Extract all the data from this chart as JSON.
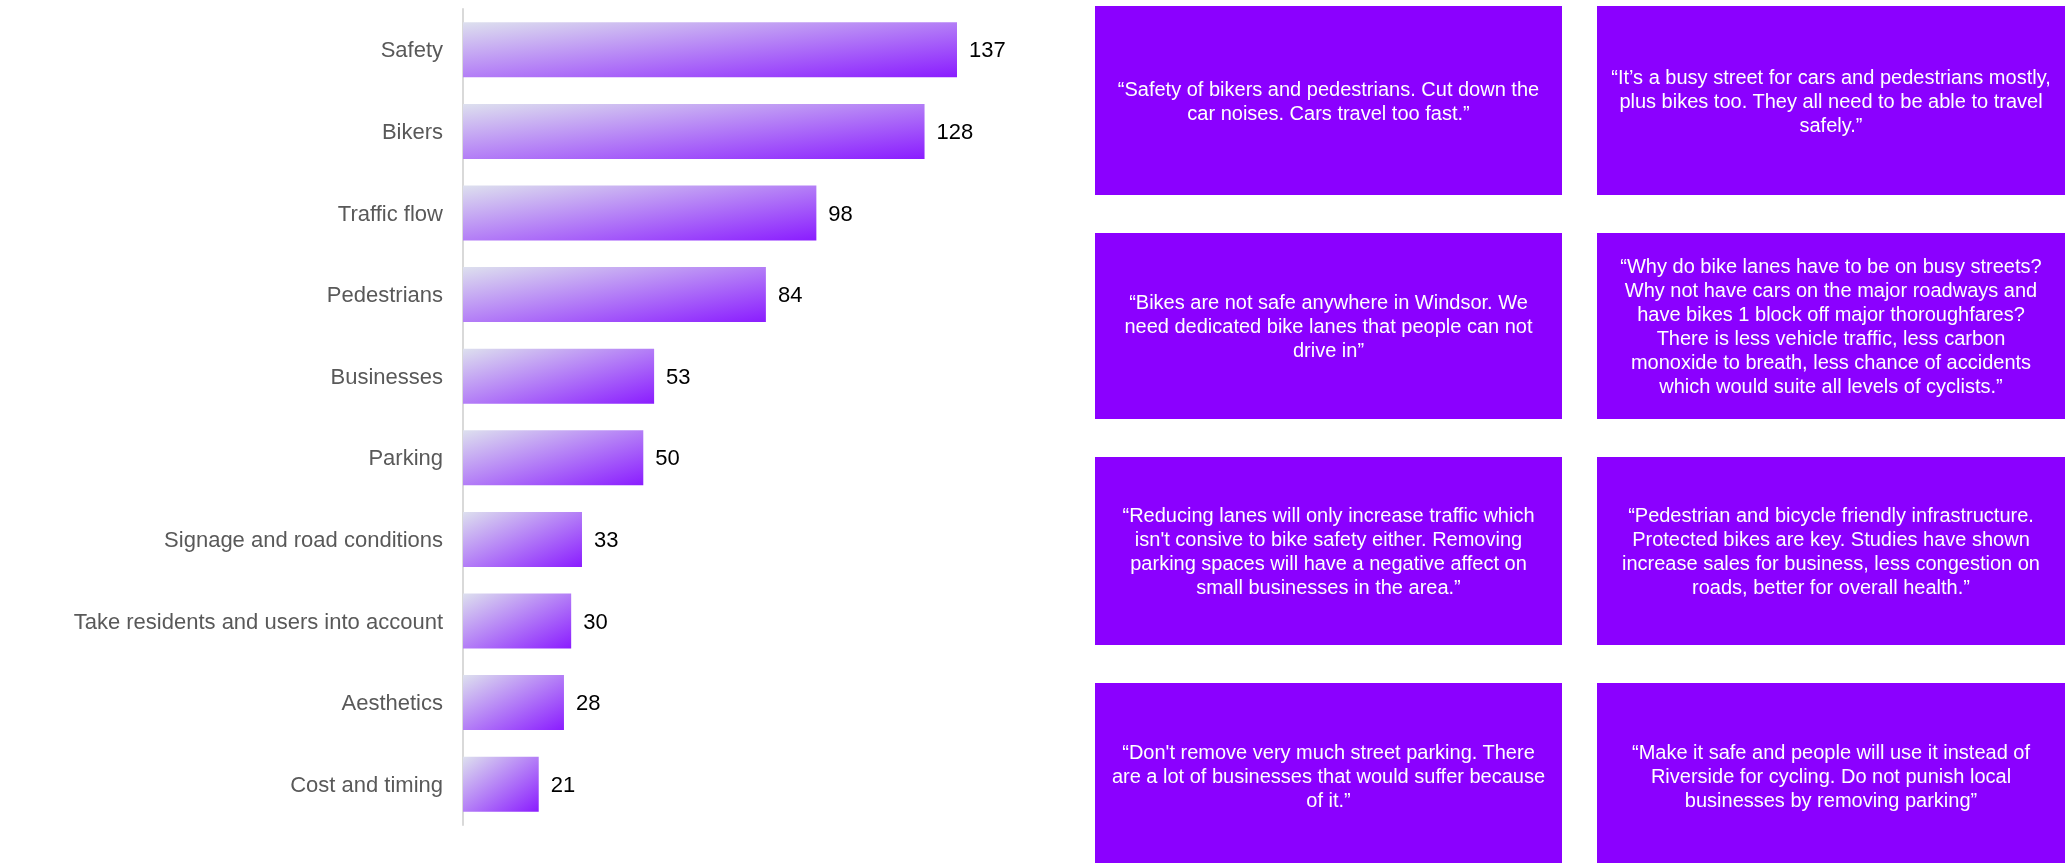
{
  "chart_data": [
    {
      "type": "bar",
      "orientation": "horizontal",
      "categories": [
        "Safety",
        "Bikers",
        "Traffic flow",
        "Pedestrians",
        "Businesses",
        "Parking",
        "Signage and road conditions",
        "Take residents and users into account",
        "Aesthetics",
        "Cost and timing"
      ],
      "values": [
        137,
        128,
        98,
        84,
        53,
        50,
        33,
        30,
        28,
        21
      ],
      "color": "#8a1cff",
      "data_labels": true
    },
    {
      "type": "other",
      "annotations": [
        "“Safety of bikers and pedestrians. Cut down the car noises. Cars travel too fast.”",
        "“It’s a busy street for cars and pedestrians mostly, plus bikes too. They all need to be able to travel safely.”",
        "“Bikes are not safe anywhere in Windsor. We need dedicated bike lanes that people can not drive in”",
        "“Why do bike lanes have to be on busy streets? Why not have cars on the major roadways and have bikes 1 block off major thoroughfares? There is less vehicle traffic, less carbon monoxide to breath, less chance of accidents which would suite all levels of cyclists.”",
        "“Reducing lanes will only increase traffic which isn't consive to bike safety either. Removing parking spaces will have a negative affect on small businesses in the area.”",
        "“Pedestrian and bicycle friendly infrastructure. Protected bikes are key. Studies have shown increase sales for business, less congestion on roads, better for overall health.”",
        "“Don't remove very much street parking. There are a lot of businesses that would suffer because of it.”",
        "“Make it safe and people will use it instead of Riverside for cycling. Do not punish local businesses by removing parking”"
      ]
    }
  ]
}
